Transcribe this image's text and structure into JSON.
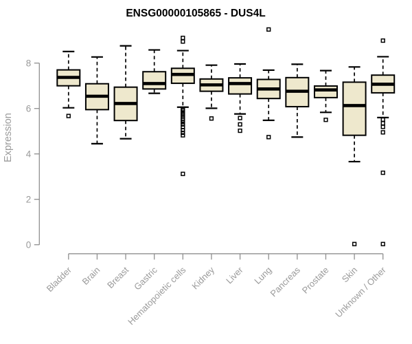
{
  "page": {
    "background": "#FFFFFF"
  },
  "chart_data": {
    "type": "boxplot",
    "title": "ENSG00000105865 - DUS4L",
    "ylabel": "Expression",
    "xlabel": "",
    "ylim": [
      0,
      9.6
    ],
    "yticks": [
      0,
      2,
      4,
      6,
      8
    ],
    "grid": false,
    "legend": false,
    "box_fill": "#EEE8CD",
    "box_stroke": "#000000",
    "median_color": "#000000",
    "axis_color": "#8F8F8F",
    "label_color": "#9A9A9A",
    "title_color": "#000000",
    "categories": [
      "Bladder",
      "Brain",
      "Breast",
      "Gastric",
      "Hematopoietic cells",
      "Kidney",
      "Liver",
      "Lung",
      "Pancreas",
      "Prostate",
      "Skin",
      "Unknown / Other"
    ],
    "boxes": [
      {
        "category": "Bladder",
        "whisker_low": 6.03,
        "q1": 7.0,
        "median": 7.37,
        "q3": 7.7,
        "whisker_high": 8.51,
        "outliers": [
          5.67
        ]
      },
      {
        "category": "Brain",
        "whisker_low": 4.45,
        "q1": 5.95,
        "median": 6.54,
        "q3": 7.09,
        "whisker_high": 8.27,
        "outliers": []
      },
      {
        "category": "Breast",
        "whisker_low": 4.67,
        "q1": 5.47,
        "median": 6.22,
        "q3": 6.94,
        "whisker_high": 8.76,
        "outliers": []
      },
      {
        "category": "Gastric",
        "whisker_low": 6.67,
        "q1": 6.86,
        "median": 7.1,
        "q3": 7.62,
        "whisker_high": 8.58,
        "outliers": []
      },
      {
        "category": "Hematopoietic cells",
        "whisker_low": 6.06,
        "q1": 7.11,
        "median": 7.5,
        "q3": 7.77,
        "whisker_high": 8.55,
        "outliers": [
          9.11,
          8.95,
          5.95,
          5.9,
          5.83,
          5.76,
          5.7,
          5.63,
          5.55,
          5.48,
          5.4,
          5.3,
          5.18,
          5.05,
          4.93,
          4.82,
          3.12
        ]
      },
      {
        "category": "Kidney",
        "whisker_low": 6.01,
        "q1": 6.76,
        "median": 7.04,
        "q3": 7.3,
        "whisker_high": 7.91,
        "outliers": [
          5.56
        ]
      },
      {
        "category": "Liver",
        "whisker_low": 5.76,
        "q1": 6.64,
        "median": 7.1,
        "q3": 7.35,
        "whisker_high": 7.96,
        "outliers": [
          5.58,
          5.3,
          5.02
        ]
      },
      {
        "category": "Lung",
        "whisker_low": 5.48,
        "q1": 6.44,
        "median": 6.86,
        "q3": 7.28,
        "whisker_high": 7.69,
        "outliers": [
          9.48,
          4.74
        ]
      },
      {
        "category": "Pancreas",
        "whisker_low": 4.74,
        "q1": 6.08,
        "median": 6.76,
        "q3": 7.36,
        "whisker_high": 7.95,
        "outliers": []
      },
      {
        "category": "Prostate",
        "whisker_low": 5.83,
        "q1": 6.48,
        "median": 6.82,
        "q3": 6.99,
        "whisker_high": 7.67,
        "outliers": [
          5.5
        ]
      },
      {
        "category": "Skin",
        "whisker_low": 3.66,
        "q1": 4.82,
        "median": 6.13,
        "q3": 7.16,
        "whisker_high": 7.83,
        "outliers": [
          0.03
        ]
      },
      {
        "category": "Unknown / Other",
        "whisker_low": 5.6,
        "q1": 6.69,
        "median": 7.07,
        "q3": 7.47,
        "whisker_high": 8.28,
        "outliers": [
          8.99,
          5.51,
          5.35,
          5.19,
          4.95,
          3.17,
          0.03
        ]
      }
    ]
  }
}
